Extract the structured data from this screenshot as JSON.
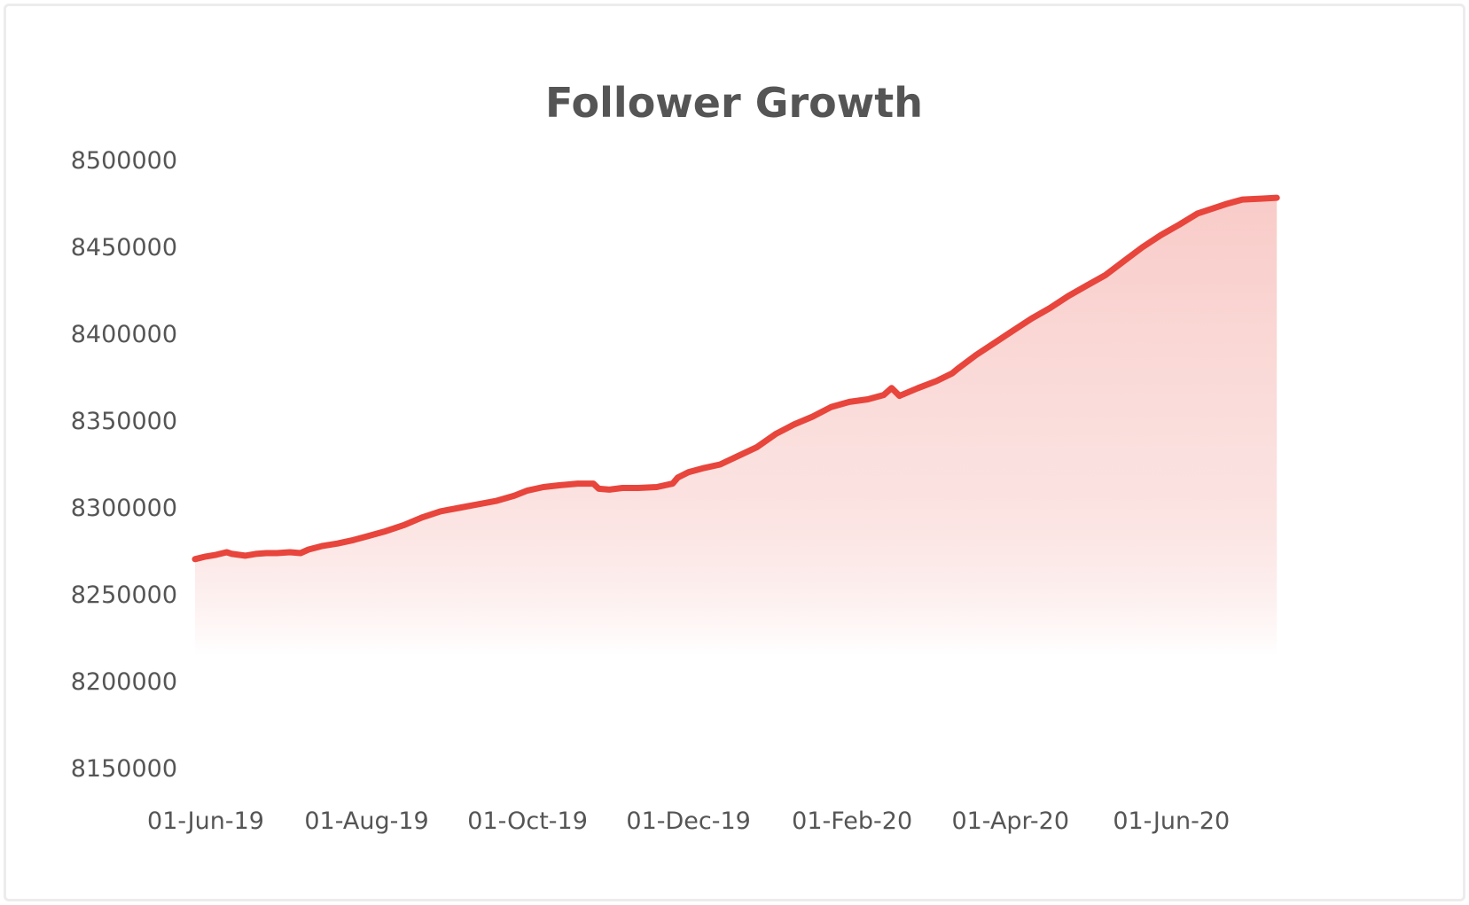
{
  "chart_data": {
    "type": "area",
    "title": "Follower Growth",
    "xlabel": "",
    "ylabel": "",
    "ylim": [
      8150000,
      8500000
    ],
    "y_ticks": [
      "8500000",
      "8450000",
      "8400000",
      "8350000",
      "8300000",
      "8250000",
      "8200000",
      "8150000"
    ],
    "x_ticks": [
      "01-Jun-19",
      "01-Aug-19",
      "01-Oct-19",
      "01-Dec-19",
      "01-Feb-20",
      "01-Apr-20",
      "01-Jun-20"
    ],
    "x_range": [
      "2019-06-01",
      "2020-07-25"
    ],
    "grid": false,
    "legend": "none",
    "line_color": "#e8453c",
    "fill_color": "#f7c9c6",
    "series": [
      {
        "x": [
          "2019-06-01",
          "2019-06-05",
          "2019-06-09",
          "2019-06-13",
          "2019-06-15",
          "2019-06-20",
          "2019-06-24",
          "2019-06-28",
          "2019-07-02",
          "2019-07-07",
          "2019-07-11",
          "2019-07-14",
          "2019-07-19",
          "2019-07-25",
          "2019-07-31",
          "2019-08-05",
          "2019-08-12",
          "2019-08-19",
          "2019-08-26",
          "2019-09-02",
          "2019-09-09",
          "2019-09-16",
          "2019-09-23",
          "2019-09-30",
          "2019-10-05",
          "2019-10-11",
          "2019-10-17",
          "2019-10-24",
          "2019-10-30",
          "2019-11-01",
          "2019-11-05",
          "2019-11-10",
          "2019-11-16",
          "2019-11-23",
          "2019-11-29",
          "2019-12-01",
          "2019-12-05",
          "2019-12-11",
          "2019-12-17",
          "2019-12-24",
          "2019-12-31",
          "2020-01-07",
          "2020-01-14",
          "2020-01-21",
          "2020-01-28",
          "2020-02-04",
          "2020-02-11",
          "2020-02-17",
          "2020-02-20",
          "2020-02-23",
          "2020-03-01",
          "2020-03-08",
          "2020-03-14",
          "2020-03-16",
          "2020-03-23",
          "2020-03-30",
          "2020-04-06",
          "2020-04-13",
          "2020-04-20",
          "2020-04-27",
          "2020-05-04",
          "2020-05-11",
          "2020-05-18",
          "2020-05-25",
          "2020-06-01",
          "2020-06-08",
          "2020-06-15",
          "2020-06-22",
          "2020-06-26",
          "2020-07-02",
          "2020-07-09",
          "2020-07-15"
        ],
        "values": [
          8270500,
          8272000,
          8273000,
          8274500,
          8273500,
          8272500,
          8273500,
          8274000,
          8274000,
          8274500,
          8274000,
          8276000,
          8278000,
          8279500,
          8281500,
          8283500,
          8286500,
          8290000,
          8294500,
          8298000,
          8300000,
          8302000,
          8304000,
          8307000,
          8310000,
          8312000,
          8313000,
          8314000,
          8314000,
          8311000,
          8310500,
          8311500,
          8311500,
          8312000,
          8314000,
          8317500,
          8320500,
          8323000,
          8325000,
          8330000,
          8335000,
          8342500,
          8348000,
          8352500,
          8358000,
          8361000,
          8362500,
          8365000,
          8369000,
          8364500,
          8369000,
          8373000,
          8377500,
          8380000,
          8388000,
          8395000,
          8402000,
          8409000,
          8415000,
          8422000,
          8428000,
          8434000,
          8442000,
          8450000,
          8457000,
          8463000,
          8469500,
          8473000,
          8475000,
          8477500,
          8478000,
          8478500
        ]
      }
    ]
  }
}
